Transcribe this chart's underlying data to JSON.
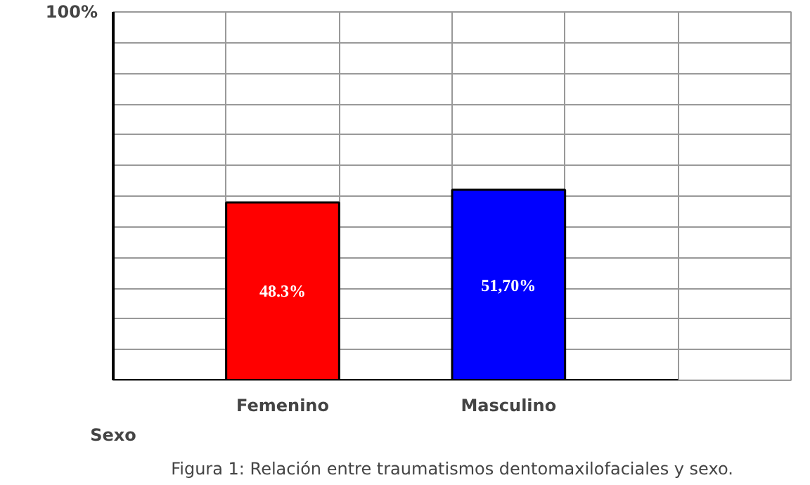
{
  "chart_data": {
    "type": "bar",
    "title": "Figura 1: Relación entre traumatismos dentomaxilofaciales y sexo.",
    "xlabel": "Sexo",
    "categories": [
      "Femenino",
      "Masculino"
    ],
    "values": [
      48.3,
      51.7
    ],
    "colors": [
      "#ff0000",
      "#0000ff"
    ],
    "value_labels": [
      "48.3%",
      "51,70%"
    ],
    "ylim": [
      0,
      100
    ],
    "yticks": [
      {
        "value": 0,
        "label": null
      },
      {
        "value": 8.33,
        "label": null
      },
      {
        "value": 16.67,
        "label": null
      },
      {
        "value": 25,
        "label": null
      },
      {
        "value": 33.33,
        "label": null
      },
      {
        "value": 41.67,
        "label": null
      },
      {
        "value": 50,
        "label": null
      },
      {
        "value": 58.33,
        "label": null
      },
      {
        "value": 66.67,
        "label": null
      },
      {
        "value": 75,
        "label": null
      },
      {
        "value": 83.33,
        "label": null
      },
      {
        "value": 91.67,
        "label": null
      },
      {
        "value": 100,
        "label": "100%"
      }
    ],
    "grid": true
  }
}
